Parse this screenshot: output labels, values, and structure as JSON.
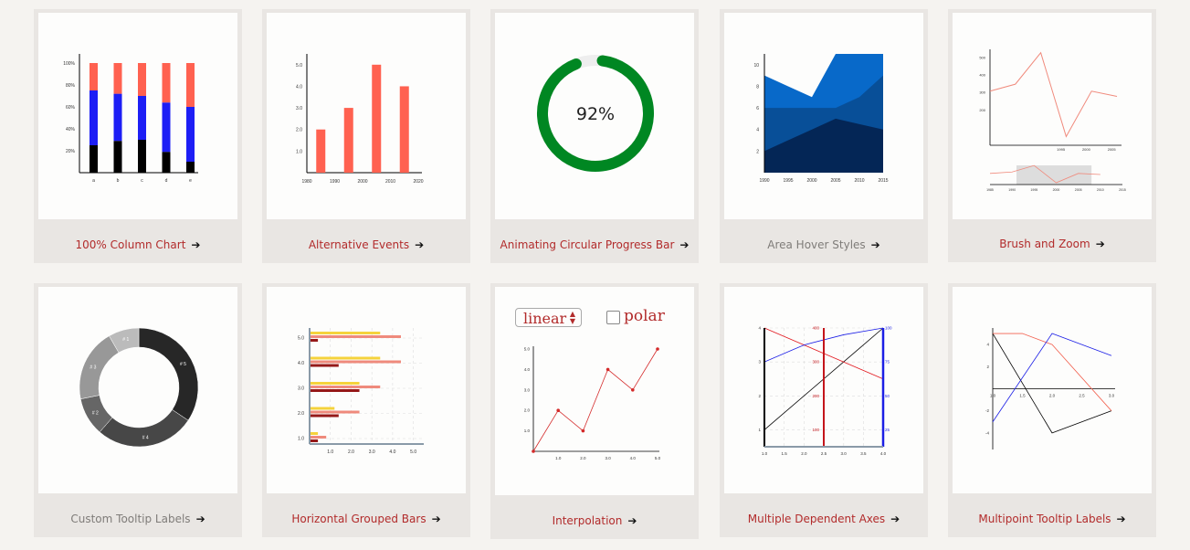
{
  "colors": {
    "link": "#b22b2b",
    "muted": "#7f7c79",
    "card": "#e9e6e3",
    "thumb": "#fdfdfc"
  },
  "arrow": "➔",
  "cards": [
    {
      "label": "100% Column Chart",
      "chart_data": {
        "type": "bar",
        "categories": [
          "a",
          "b",
          "c",
          "d",
          "e"
        ],
        "yticks": [
          "20%",
          "40%",
          "60%",
          "80%",
          "100%"
        ],
        "series": [
          {
            "values": [
              25,
              29,
              30,
              19,
              10
            ],
            "color": "#000000"
          },
          {
            "values": [
              50,
              43,
              40,
              45,
              50
            ],
            "color": "#1d1ef5"
          },
          {
            "values": [
              25,
              28,
              30,
              36,
              40
            ],
            "color": "#ff6150"
          }
        ],
        "ylim": [
          0,
          100
        ]
      }
    },
    {
      "label": "Alternative Events",
      "chart_data": {
        "type": "bar",
        "x": [
          1985,
          1995,
          2005,
          2015
        ],
        "values": [
          2,
          3,
          5,
          4
        ],
        "xticks": [
          "1980",
          "1990",
          "2000",
          "2010",
          "2020"
        ],
        "yticks": [
          "1.0",
          "2.0",
          "3.0",
          "4.0",
          "5.0"
        ],
        "ylim": [
          0,
          5.5
        ]
      }
    },
    {
      "label": "Animating Circular Progress Bar",
      "progress": {
        "value": 0.92,
        "text": "92%",
        "color": "#008722"
      }
    },
    {
      "label": "Area Hover Styles",
      "chart_data": {
        "type": "area",
        "x": [
          1990,
          1995,
          2000,
          2005,
          2010,
          2015
        ],
        "xticks": [
          "1990",
          "1995",
          "2000",
          "2005",
          "2010",
          "2015"
        ],
        "yticks": [
          "2",
          "4",
          "6",
          "8",
          "10"
        ],
        "series": [
          {
            "values": [
              2,
              3,
              4,
              5,
              4.5,
              4
            ],
            "color": "#042656"
          },
          {
            "values": [
              6,
              6,
              6,
              6,
              7,
              9
            ],
            "color": "#084f98"
          },
          {
            "values": [
              9,
              8,
              7,
              11,
              11,
              11
            ],
            "color": "#0869c9"
          }
        ],
        "ylim": [
          0,
          11
        ]
      }
    },
    {
      "label": "Brush and Zoom",
      "chart_data": {
        "type": "line",
        "x": [
          1985,
          1990,
          1995,
          2000,
          2005,
          2010
        ],
        "values": [
          310,
          350,
          530,
          50,
          310,
          280
        ],
        "xticks": [
          "1995",
          "2000",
          "2005"
        ],
        "yticks": [
          "200",
          "300",
          "400",
          "500"
        ],
        "context_xticks": [
          "1985",
          "1990",
          "1995",
          "2000",
          "2005",
          "2010",
          "2015"
        ],
        "brush": [
          1991,
          2008
        ]
      }
    },
    {
      "label": "Custom Tooltip Labels",
      "chart_data": {
        "type": "pie",
        "donut": true,
        "slices": [
          {
            "label": "# 5",
            "value": 33,
            "color": "#272727"
          },
          {
            "label": "# 4",
            "value": 26,
            "color": "#474747"
          },
          {
            "label": "# 2",
            "value": 10,
            "color": "#666666"
          },
          {
            "label": "# 3",
            "value": 19,
            "color": "#989898"
          },
          {
            "label": "# 1",
            "value": 8,
            "color": "#bbbbbb"
          }
        ]
      }
    },
    {
      "label": "Horizontal Grouped Bars",
      "chart_data": {
        "type": "bar",
        "orientation": "horizontal",
        "categories": [
          "1.0",
          "2.0",
          "3.0",
          "4.0",
          "5.0"
        ],
        "xticks": [
          "1.0",
          "2.0",
          "3.0",
          "4.0",
          "5.0"
        ],
        "series": [
          {
            "values": [
              0.4,
              1.2,
              2.4,
              3.4,
              3.4
            ],
            "color": "#f5d33c"
          },
          {
            "values": [
              0.8,
              2.4,
              3.4,
              4.4,
              4.4
            ],
            "color": "#ef8a7c"
          },
          {
            "values": [
              0.4,
              1.4,
              2.4,
              1.4,
              0.4
            ],
            "color": "#951818"
          }
        ],
        "xlim": [
          0,
          5.5
        ]
      }
    },
    {
      "label": "Interpolation",
      "select": {
        "value": "linear"
      },
      "checkbox": {
        "label": "polar"
      },
      "chart_data": {
        "type": "line",
        "x": [
          0,
          1,
          2,
          3,
          4,
          5
        ],
        "values": [
          0,
          2,
          1,
          4,
          3,
          5
        ],
        "xticks": [
          "1.0",
          "2.0",
          "3.0",
          "4.0",
          "5.0"
        ],
        "yticks": [
          "1.0",
          "2.0",
          "3.0",
          "4.0",
          "5.0"
        ],
        "color": "#d42a2a"
      }
    },
    {
      "label": "Multiple Dependent Axes",
      "chart_data": {
        "type": "line",
        "xticks": [
          "1.0",
          "1.5",
          "2.0",
          "2.5",
          "3.0",
          "3.5",
          "4.0"
        ],
        "left_ticks": [
          "1",
          "2",
          "3",
          "4"
        ],
        "mid_ticks": [
          "100",
          "200",
          "300",
          "400"
        ],
        "right_ticks": [
          "25",
          "50",
          "75",
          "100"
        ],
        "series": [
          {
            "x": [
              1,
              4
            ],
            "values": [
              1,
              4
            ],
            "color": "#000000"
          },
          {
            "x": [
              1,
              4
            ],
            "values": [
              4,
              2.5
            ],
            "color": "#e2171d"
          },
          {
            "x": [
              1,
              2,
              3,
              4
            ],
            "values": [
              3,
              3.5,
              3.8,
              4
            ],
            "color": "#1b1ee6"
          }
        ]
      }
    },
    {
      "label": "Multipoint Tooltip Labels",
      "chart_data": {
        "type": "line",
        "xticks": [
          "1.0",
          "1.5",
          "2.0",
          "2.5",
          "3.0"
        ],
        "yticks": [
          "-4",
          "-2",
          "2",
          "4"
        ],
        "series": [
          {
            "x": [
              1,
              2,
              3
            ],
            "values": [
              5,
              -4,
              -2
            ],
            "color": "#000000"
          },
          {
            "x": [
              1,
              1.5,
              2,
              3
            ],
            "values": [
              5,
              5,
              4,
              -2
            ],
            "color": "#f2614f"
          },
          {
            "x": [
              1,
              2,
              3
            ],
            "values": [
              -3,
              5,
              3
            ],
            "color": "#1b1ee6"
          }
        ]
      }
    }
  ]
}
